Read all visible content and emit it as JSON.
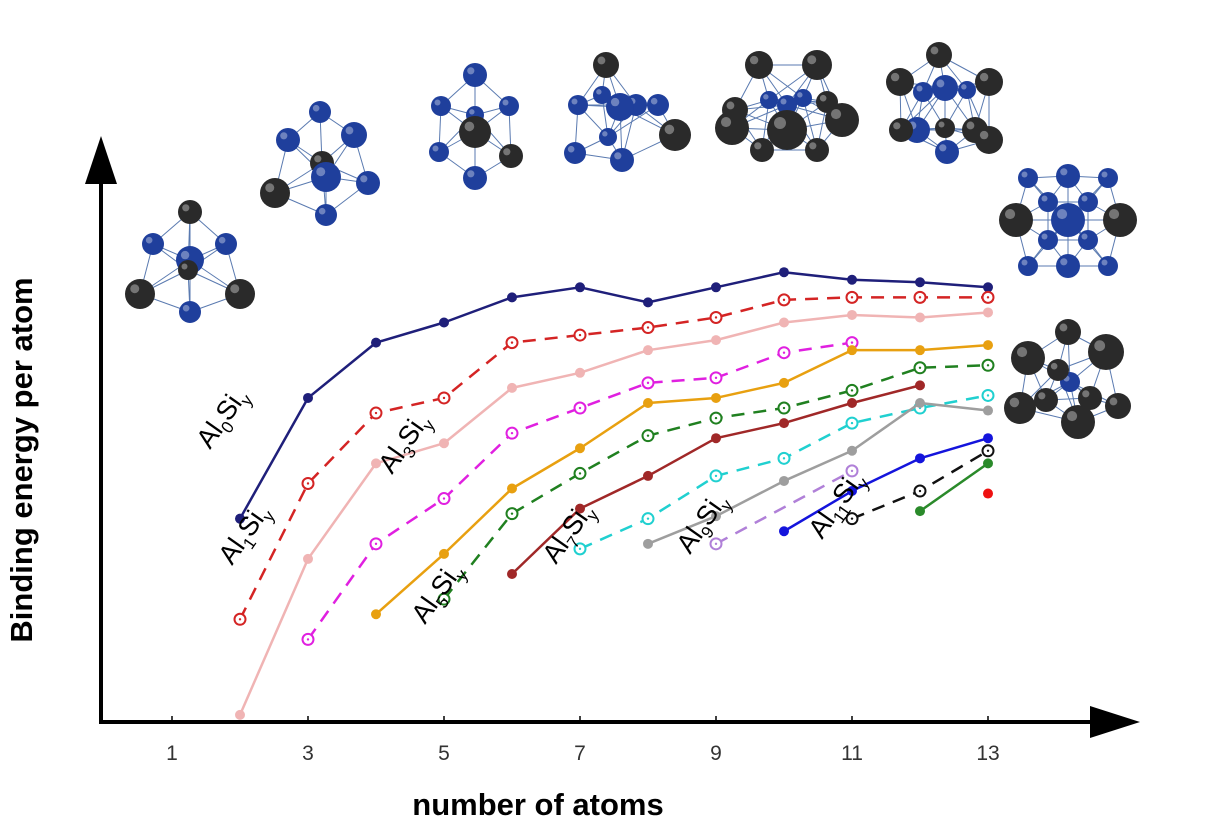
{
  "chart_data": {
    "type": "line",
    "xlabel": "number of atoms",
    "ylabel": "Binding energy per atom",
    "x_ticks": [
      "1",
      "3",
      "5",
      "7",
      "9",
      "11",
      "13"
    ],
    "xlim": [
      0,
      14
    ],
    "ylim": [
      0,
      10
    ],
    "grid": false,
    "marker_colors": {
      "atom_al": "#1f3f9c",
      "atom_si": "#2a2a2a"
    },
    "series": [
      {
        "color": "#1f1f7a",
        "dash": false,
        "marker": "filled",
        "x": [
          2,
          3,
          4,
          5,
          6,
          7,
          8,
          9,
          10,
          11,
          12,
          13
        ],
        "y": [
          4.4,
          6.8,
          7.9,
          8.3,
          8.8,
          9.0,
          8.7,
          9.0,
          9.3,
          9.15,
          9.1,
          9.0
        ]
      },
      {
        "color": "#d42424",
        "dash": true,
        "marker": "open",
        "x": [
          2,
          3,
          4,
          5,
          6,
          7,
          8,
          9,
          10,
          11,
          12,
          13
        ],
        "y": [
          2.4,
          5.1,
          6.5,
          6.8,
          7.9,
          8.05,
          8.2,
          8.4,
          8.75,
          8.8,
          8.8,
          8.8
        ]
      },
      {
        "color": "#f0b4b4",
        "dash": false,
        "marker": "filled",
        "x": [
          2,
          3,
          4,
          5,
          6,
          7,
          8,
          9,
          10,
          11,
          12,
          13
        ],
        "y": [
          0.5,
          3.6,
          5.5,
          5.9,
          7.0,
          7.3,
          7.75,
          7.95,
          8.3,
          8.45,
          8.4,
          8.5
        ]
      },
      {
        "color": "#e020e0",
        "dash": true,
        "marker": "open",
        "x": [
          3,
          4,
          5,
          6,
          7,
          8,
          9,
          10,
          11
        ],
        "y": [
          2.0,
          3.9,
          4.8,
          6.1,
          6.6,
          7.1,
          7.2,
          7.7,
          7.9
        ]
      },
      {
        "color": "#e8a010",
        "dash": false,
        "marker": "filled",
        "x": [
          4,
          5,
          6,
          7,
          8,
          9,
          10,
          11,
          12,
          13
        ],
        "y": [
          2.5,
          3.7,
          5.0,
          5.8,
          6.7,
          6.8,
          7.1,
          7.75,
          7.75,
          7.85
        ]
      },
      {
        "color": "#208020",
        "dash": true,
        "marker": "open",
        "x": [
          5,
          6,
          7,
          8,
          9,
          10,
          11,
          12,
          13
        ],
        "y": [
          2.8,
          4.5,
          5.3,
          6.05,
          6.4,
          6.6,
          6.95,
          7.4,
          7.45
        ]
      },
      {
        "color": "#a02828",
        "dash": false,
        "marker": "filled",
        "x": [
          6,
          7,
          8,
          9,
          10,
          11,
          12
        ],
        "y": [
          3.3,
          4.6,
          5.25,
          6.0,
          6.3,
          6.7,
          7.05
        ]
      },
      {
        "color": "#20d0d0",
        "dash": true,
        "marker": "open",
        "x": [
          7,
          8,
          9,
          10,
          11,
          12,
          13
        ],
        "y": [
          3.8,
          4.4,
          5.25,
          5.6,
          6.3,
          6.6,
          6.85
        ]
      },
      {
        "color": "#9e9e9e",
        "dash": false,
        "marker": "filled",
        "x": [
          8,
          9,
          10,
          11,
          12,
          13
        ],
        "y": [
          3.9,
          4.45,
          5.15,
          5.75,
          6.7,
          6.55
        ]
      },
      {
        "color": "#b080d8",
        "dash": true,
        "marker": "open",
        "x": [
          9,
          11
        ],
        "y": [
          3.9,
          5.35
        ]
      },
      {
        "color": "#1414dc",
        "dash": false,
        "marker": "filled",
        "x": [
          10,
          11,
          12,
          13
        ],
        "y": [
          4.15,
          4.95,
          5.6,
          6.0
        ]
      },
      {
        "color": "#111111",
        "dash": true,
        "marker": "open",
        "x": [
          11,
          12,
          13
        ],
        "y": [
          4.4,
          4.95,
          5.75
        ]
      },
      {
        "color": "#2a8a2a",
        "dash": false,
        "marker": "filled",
        "x": [
          12,
          13
        ],
        "y": [
          4.55,
          5.5
        ]
      },
      {
        "color": "#ee1111",
        "dash": false,
        "marker": "filled",
        "x": [
          13
        ],
        "y": [
          4.9
        ]
      }
    ],
    "annotations": [
      {
        "base": "Al",
        "sub1": "0",
        "mid": "Si",
        "sub2": "y"
      },
      {
        "base": "Al",
        "sub1": "1",
        "mid": "Si",
        "sub2": "y"
      },
      {
        "base": "Al",
        "sub1": "3",
        "mid": "Si",
        "sub2": "y"
      },
      {
        "base": "Al",
        "sub1": "5",
        "mid": "Si",
        "sub2": "y"
      },
      {
        "base": "Al",
        "sub1": "7",
        "mid": "Si",
        "sub2": "y"
      },
      {
        "base": "Al",
        "sub1": "9",
        "mid": "Si",
        "sub2": "y"
      },
      {
        "base": "Al",
        "sub1": "11",
        "mid": "Si",
        "sub2": "y"
      }
    ]
  }
}
